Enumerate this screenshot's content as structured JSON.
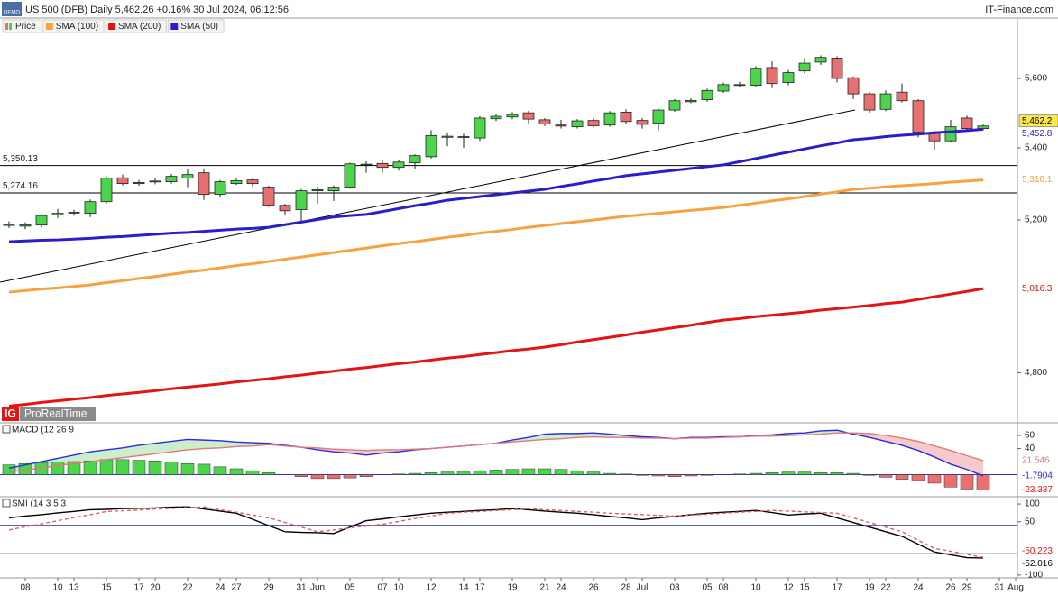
{
  "chart_data": [
    {
      "type": "candlestick",
      "title": "US 500 (DFB) Daily 5,462.26 +0.16% 30 Jul 2024, 06:12:56",
      "source": "IT-Finance.com",
      "badge": "DEMO",
      "logo": [
        "IG",
        "ProRealTime"
      ],
      "log_scale": true,
      "ylim": [
        4678,
        5780
      ],
      "yticks": [
        {
          "value": 5600,
          "label": "5,600"
        },
        {
          "value": 5400,
          "label": "5,400"
        },
        {
          "value": 5200,
          "label": "5,200"
        },
        {
          "value": 4800,
          "label": "4,800"
        }
      ],
      "categories": [
        null,
        "08",
        null,
        "10",
        "13",
        null,
        "15",
        null,
        "17",
        "20",
        null,
        "22",
        null,
        "24",
        "27",
        null,
        "29",
        null,
        "31",
        "Jun",
        null,
        "05",
        null,
        "07",
        "10",
        null,
        "12",
        null,
        "14",
        "17",
        null,
        "19",
        null,
        "21",
        "24",
        null,
        "26",
        null,
        "28",
        "Jul",
        null,
        "03",
        null,
        "05",
        "08",
        null,
        "10",
        null,
        "12",
        "15",
        null,
        "17",
        null,
        "19",
        "22",
        null,
        "24",
        null,
        "26",
        "29",
        null,
        "31",
        "Aug"
      ],
      "ohlc": {
        "name": "Price",
        "up_color": "#4cd44c",
        "down_color": "#e87070",
        "open": [
          5185,
          5183,
          5186,
          5214,
          5220,
          5218,
          5250,
          5316,
          5300,
          5305,
          5305,
          5315,
          5330,
          5270,
          5300,
          5310,
          5290,
          5240,
          5228,
          5280,
          5280,
          5290,
          5352,
          5356,
          5345,
          5358,
          5375,
          5430,
          5430,
          5428,
          5483,
          5488,
          5500,
          5480,
          5465,
          5460,
          5478,
          5465,
          5502,
          5478,
          5470,
          5508,
          5532,
          5538,
          5563,
          5580,
          5580,
          5632,
          5588,
          5622,
          5648,
          5660,
          5602,
          5555,
          5510,
          5560,
          5535,
          5443,
          5420,
          5485,
          5455,
          null,
          null
        ],
        "high": [
          5196,
          5193,
          5216,
          5230,
          5228,
          5256,
          5320,
          5325,
          5310,
          5315,
          5327,
          5340,
          5340,
          5310,
          5314,
          5316,
          5294,
          5244,
          5285,
          5292,
          5295,
          5358,
          5362,
          5366,
          5366,
          5382,
          5450,
          5442,
          5440,
          5490,
          5497,
          5502,
          5506,
          5485,
          5480,
          5482,
          5484,
          5505,
          5510,
          5485,
          5512,
          5540,
          5542,
          5570,
          5588,
          5590,
          5636,
          5650,
          5625,
          5660,
          5668,
          5665,
          5606,
          5560,
          5565,
          5585,
          5540,
          5448,
          5480,
          5492,
          5466,
          null,
          null
        ],
        "low": [
          5178,
          5175,
          5180,
          5205,
          5212,
          5208,
          5245,
          5295,
          5294,
          5298,
          5300,
          5290,
          5255,
          5262,
          5296,
          5292,
          5235,
          5215,
          5195,
          5245,
          5252,
          5286,
          5330,
          5330,
          5336,
          5340,
          5370,
          5405,
          5400,
          5420,
          5476,
          5482,
          5470,
          5462,
          5455,
          5455,
          5458,
          5460,
          5468,
          5455,
          5450,
          5503,
          5528,
          5532,
          5558,
          5574,
          5576,
          5572,
          5580,
          5615,
          5640,
          5588,
          5540,
          5500,
          5505,
          5530,
          5430,
          5395,
          5415,
          5450,
          5450,
          null,
          null
        ],
        "close": [
          5188,
          5187,
          5212,
          5218,
          5221,
          5250,
          5315,
          5300,
          5303,
          5307,
          5320,
          5325,
          5270,
          5305,
          5308,
          5300,
          5240,
          5225,
          5280,
          5283,
          5290,
          5355,
          5354,
          5345,
          5360,
          5378,
          5435,
          5433,
          5432,
          5485,
          5490,
          5495,
          5482,
          5468,
          5462,
          5477,
          5463,
          5500,
          5475,
          5467,
          5508,
          5535,
          5536,
          5565,
          5582,
          5582,
          5630,
          5585,
          5617,
          5645,
          5662,
          5600,
          5555,
          5508,
          5555,
          5535,
          5445,
          5420,
          5460,
          5455,
          5462.26,
          null,
          null
        ]
      },
      "series": [
        {
          "name": "SMA (100)",
          "color": "#f7a23e",
          "values": [
            5007,
            5011,
            5015,
            5018,
            5022,
            5026,
            5032,
            5037,
            5043,
            5048,
            5054,
            5060,
            5065,
            5071,
            5077,
            5082,
            5088,
            5094,
            5100,
            5106,
            5112,
            5118,
            5124,
            5130,
            5136,
            5141,
            5147,
            5153,
            5158,
            5164,
            5169,
            5174,
            5180,
            5185,
            5190,
            5195,
            5200,
            5205,
            5210,
            5214,
            5218,
            5222,
            5226,
            5230,
            5234,
            5240,
            5246,
            5252,
            5258,
            5264,
            5271,
            5277,
            5284,
            5287,
            5291,
            5294,
            5297,
            5300,
            5304,
            5307,
            5310.1,
            null,
            null
          ]
        },
        {
          "name": "SMA (200)",
          "color": "#e31414",
          "values": [
            4717,
            4721,
            4726,
            4730,
            4734,
            4738,
            4743,
            4747,
            4751,
            4755,
            4760,
            4764,
            4768,
            4772,
            4777,
            4781,
            4785,
            4790,
            4794,
            4799,
            4804,
            4809,
            4813,
            4818,
            4823,
            4827,
            4832,
            4837,
            4841,
            4846,
            4851,
            4856,
            4860,
            4865,
            4871,
            4878,
            4884,
            4890,
            4896,
            4903,
            4909,
            4915,
            4921,
            4928,
            4934,
            4938,
            4943,
            4947,
            4951,
            4955,
            4960,
            4964,
            4968,
            4972,
            4977,
            4981,
            4988,
            4995,
            5002,
            5009,
            5016.3,
            null,
            null
          ]
        },
        {
          "name": "SMA (50)",
          "color": "#2b1ec8",
          "values": [
            5141,
            5143,
            5145,
            5146,
            5148,
            5150,
            5153,
            5155,
            5158,
            5161,
            5164,
            5166,
            5169,
            5172,
            5175,
            5177,
            5180,
            5187,
            5194,
            5201,
            5208,
            5212,
            5215,
            5223,
            5231,
            5239,
            5246,
            5254,
            5259,
            5264,
            5269,
            5274,
            5279,
            5284,
            5292,
            5299,
            5307,
            5314,
            5322,
            5327,
            5332,
            5337,
            5342,
            5347,
            5352,
            5361,
            5370,
            5379,
            5388,
            5397,
            5406,
            5414,
            5423,
            5427,
            5432,
            5436,
            5439,
            5443,
            5446,
            5449,
            5452.8,
            null,
            null
          ]
        }
      ],
      "levels": [
        {
          "value": 5350.13,
          "label": "5,350.13"
        },
        {
          "value": 5274.16,
          "label": "5,274.16"
        }
      ],
      "level_color": "#000000",
      "tags": [
        {
          "value": 5462.2,
          "label": "5,462.2",
          "color": "#000000",
          "background": "#ffe94a"
        },
        {
          "value": 5452.8,
          "label": "5,452.8",
          "color": "#2b1ec8"
        },
        {
          "value": 5310.1,
          "label": "5,310.1",
          "color": "#f7a23e"
        },
        {
          "value": 5016.3,
          "label": "5,016.3",
          "color": "#e31414"
        }
      ]
    },
    {
      "type": "combo",
      "title": "MACD (12 26 9",
      "ylim": [
        -32.4,
        78
      ],
      "yticks": [
        60,
        40
      ],
      "zero_line": true,
      "zero_line_color": "#3030c0",
      "histogram": {
        "up_color": "#4cd44c",
        "down_color": "#e87070",
        "values": [
          15,
          17,
          18,
          19,
          20,
          21,
          23,
          23,
          22,
          21,
          19,
          17,
          16,
          12,
          9,
          6,
          3,
          0,
          -3,
          -6,
          -6,
          -5,
          -3,
          0,
          1,
          2,
          3,
          4,
          5,
          6,
          7,
          8,
          9,
          9,
          8,
          6,
          4,
          2,
          1,
          -1,
          -2,
          -3,
          -2,
          -1,
          0,
          1,
          2,
          3,
          4,
          4,
          3,
          3,
          2,
          -1,
          -4,
          -7,
          -9,
          -13,
          -19,
          -22,
          -23.337,
          null,
          null
        ]
      },
      "fill_colors": [
        "#cdeecd",
        "#f6caca"
      ],
      "series": [
        {
          "color": "#2b2be0",
          "values": [
            10,
            15,
            20,
            25,
            30,
            35,
            38,
            41,
            45,
            48,
            51,
            54,
            53,
            52,
            50,
            49,
            48,
            45,
            42,
            38,
            35,
            33,
            30,
            33,
            35,
            38,
            40,
            42,
            44,
            46,
            48,
            53,
            57,
            62,
            63,
            63,
            64,
            62,
            60,
            58,
            57,
            55,
            57,
            57,
            58,
            58,
            60,
            61,
            63,
            64,
            67,
            68,
            62,
            57,
            51,
            45,
            37,
            27,
            16,
            8,
            -1.7904,
            null,
            null
          ]
        },
        {
          "color": "#e07a7a",
          "values": [
            4,
            7,
            10,
            14,
            17,
            20,
            23,
            26,
            29,
            32,
            35,
            38,
            40,
            41,
            43,
            44,
            46,
            44,
            42,
            41,
            39,
            38,
            37,
            38,
            38,
            39,
            40,
            42,
            44,
            46,
            48,
            50,
            52,
            54,
            55,
            57,
            58,
            57,
            57,
            56,
            56,
            55,
            56,
            56,
            57,
            58,
            59,
            59,
            60,
            61,
            62,
            64,
            64,
            63,
            60,
            56,
            51,
            44,
            37,
            29,
            21.546,
            null,
            null
          ]
        }
      ],
      "tags": [
        {
          "value": 21.546,
          "color": "#e07a7a"
        },
        {
          "value": -1.7904,
          "color": "#2b2be0"
        },
        {
          "value": -23.337,
          "color": "#e31414"
        }
      ]
    },
    {
      "type": "line",
      "title": "SMI (14 3 5 3",
      "ylim": [
        -108,
        118
      ],
      "yticks": [
        100,
        50,
        -100
      ],
      "levels": [
        40,
        -40
      ],
      "level_color": "#2a2a9a",
      "series": [
        {
          "color": "#000000",
          "values": [
            61,
            66,
            70,
            75,
            79,
            84,
            85,
            87,
            88,
            89,
            91,
            92,
            86,
            80,
            74,
            57,
            39,
            22,
            20,
            19,
            17,
            35,
            53,
            58,
            64,
            69,
            74,
            77,
            79,
            82,
            84,
            87,
            84,
            80,
            77,
            74,
            70,
            65,
            61,
            56,
            61,
            65,
            70,
            74,
            77,
            79,
            82,
            76,
            69,
            72,
            74,
            61,
            48,
            35,
            22,
            9,
            -13,
            -35,
            -43,
            -51,
            -52.016,
            null,
            null
          ]
        },
        {
          "color": "#e06060",
          "dash": true,
          "values": [
            27,
            36,
            44,
            53,
            62,
            70,
            79,
            81,
            83,
            86,
            88,
            90,
            92,
            84,
            77,
            69,
            61,
            48,
            35,
            22,
            27,
            33,
            38,
            43,
            51,
            59,
            66,
            74,
            77,
            79,
            82,
            84,
            87,
            84,
            82,
            79,
            77,
            74,
            72,
            70,
            68,
            66,
            69,
            71,
            74,
            77,
            79,
            82,
            80,
            78,
            76,
            74,
            61,
            48,
            35,
            22,
            -2,
            -25,
            -33,
            -42,
            -50.223,
            null,
            null
          ]
        }
      ],
      "tags": [
        {
          "value": -50.223,
          "color": "#e31414"
        },
        {
          "value": -52.016,
          "color": "#000000"
        }
      ]
    }
  ]
}
